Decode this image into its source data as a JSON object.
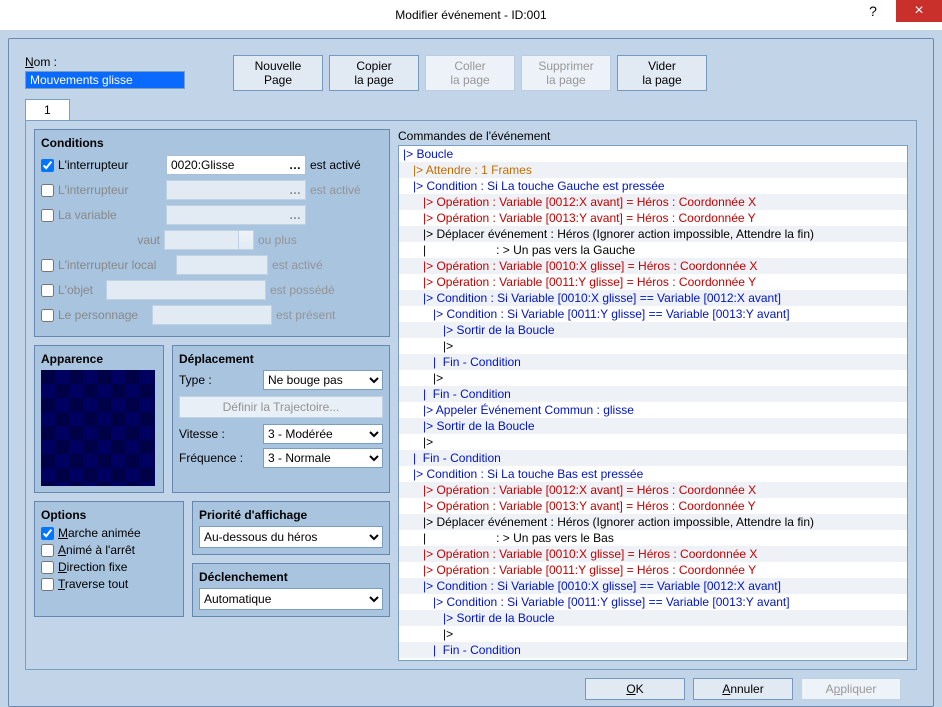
{
  "window": {
    "title": "Modifier événement - ID:001"
  },
  "name": {
    "label": "Nom :",
    "value": "Mouvements glisse"
  },
  "toolbar": {
    "new_page": "Nouvelle\nPage",
    "copy_page": "Copier\nla page",
    "paste_page": "Coller\nla page",
    "delete_page": "Supprimer\nla page",
    "clear_page": "Vider\nla page"
  },
  "tab_label": "1",
  "conditions": {
    "title": "Conditions",
    "sw1": {
      "label": "L'interrupteur",
      "value": "0020:Glisse",
      "trail": "est activé",
      "checked": true
    },
    "sw2": {
      "label": "L'interrupteur",
      "value": "",
      "trail": "est activé",
      "checked": false
    },
    "var": {
      "label": "La variable",
      "value": "",
      "checked": false
    },
    "var_worth": {
      "label": "vaut",
      "trail": "ou plus"
    },
    "swlocal": {
      "label": "L'interrupteur local",
      "trail": "est activé",
      "checked": false
    },
    "objet": {
      "label": "L'objet",
      "trail": "est possédé",
      "checked": false
    },
    "perso": {
      "label": "Le personnage",
      "trail": "est présent",
      "checked": false
    }
  },
  "appearance": {
    "title": "Apparence"
  },
  "deplacement": {
    "title": "Déplacement",
    "type_label": "Type :",
    "type_value": "Ne bouge pas",
    "traj_btn": "Définir la Trajectoire...",
    "vitesse_label": "Vitesse :",
    "vitesse_value": "3 - Modérée",
    "freq_label": "Fréquence :",
    "freq_value": "3 - Normale"
  },
  "options": {
    "title": "Options",
    "marche": "Marche animée",
    "anime": "Animé à l'arrêt",
    "direction": "Direction fixe",
    "traverse": "Traverse tout"
  },
  "priorite": {
    "title": "Priorité d'affichage",
    "value": "Au-dessous du héros"
  },
  "declenchement": {
    "title": "Déclenchement",
    "value": "Automatique"
  },
  "commands_title": "Commandes de l'événement",
  "event_lines": [
    {
      "i": 0,
      "c": "blue",
      "t": "|> Boucle"
    },
    {
      "i": 1,
      "c": "orange",
      "t": "|> Attendre : 1 Frames"
    },
    {
      "i": 1,
      "c": "blue",
      "t": "|> Condition : Si La touche Gauche est pressée"
    },
    {
      "i": 2,
      "c": "red",
      "t": "|> Opération : Variable [0012:X avant] = Héros : Coordonnée X"
    },
    {
      "i": 2,
      "c": "red",
      "t": "|> Opération : Variable [0013:Y avant] = Héros : Coordonnée Y"
    },
    {
      "i": 2,
      "c": "black",
      "t": "|> Déplacer événement : Héros (Ignorer action impossible, Attendre la fin)"
    },
    {
      "i": 2,
      "c": "black",
      "t": "|                     : > Un pas vers la Gauche"
    },
    {
      "i": 2,
      "c": "red",
      "t": "|> Opération : Variable [0010:X glisse] = Héros : Coordonnée X"
    },
    {
      "i": 2,
      "c": "red",
      "t": "|> Opération : Variable [0011:Y glisse] = Héros : Coordonnée Y"
    },
    {
      "i": 2,
      "c": "blue",
      "t": "|> Condition : Si Variable [0010:X glisse] == Variable [0012:X avant]"
    },
    {
      "i": 3,
      "c": "blue",
      "t": "|> Condition : Si Variable [0011:Y glisse] == Variable [0013:Y avant]"
    },
    {
      "i": 4,
      "c": "blue",
      "t": "|> Sortir de la Boucle"
    },
    {
      "i": 4,
      "c": "black",
      "t": "|>"
    },
    {
      "i": 3,
      "c": "blue",
      "t": "|  Fin - Condition"
    },
    {
      "i": 3,
      "c": "black",
      "t": "|>"
    },
    {
      "i": 2,
      "c": "blue",
      "t": "|  Fin - Condition"
    },
    {
      "i": 2,
      "c": "blue",
      "t": "|> Appeler Événement Commun : glisse"
    },
    {
      "i": 2,
      "c": "blue",
      "t": "|> Sortir de la Boucle"
    },
    {
      "i": 2,
      "c": "black",
      "t": "|>"
    },
    {
      "i": 1,
      "c": "blue",
      "t": "|  Fin - Condition"
    },
    {
      "i": 1,
      "c": "blue",
      "t": "|> Condition : Si La touche Bas est pressée"
    },
    {
      "i": 2,
      "c": "red",
      "t": "|> Opération : Variable [0012:X avant] = Héros : Coordonnée X"
    },
    {
      "i": 2,
      "c": "red",
      "t": "|> Opération : Variable [0013:Y avant] = Héros : Coordonnée Y"
    },
    {
      "i": 2,
      "c": "black",
      "t": "|> Déplacer événement : Héros (Ignorer action impossible, Attendre la fin)"
    },
    {
      "i": 2,
      "c": "black",
      "t": "|                     : > Un pas vers le Bas"
    },
    {
      "i": 2,
      "c": "red",
      "t": "|> Opération : Variable [0010:X glisse] = Héros : Coordonnée X"
    },
    {
      "i": 2,
      "c": "red",
      "t": "|> Opération : Variable [0011:Y glisse] = Héros : Coordonnée Y"
    },
    {
      "i": 2,
      "c": "blue",
      "t": "|> Condition : Si Variable [0010:X glisse] == Variable [0012:X avant]"
    },
    {
      "i": 3,
      "c": "blue",
      "t": "|> Condition : Si Variable [0011:Y glisse] == Variable [0013:Y avant]"
    },
    {
      "i": 4,
      "c": "blue",
      "t": "|> Sortir de la Boucle"
    },
    {
      "i": 4,
      "c": "black",
      "t": "|>"
    },
    {
      "i": 3,
      "c": "blue",
      "t": "|  Fin - Condition"
    },
    {
      "i": 3,
      "c": "black",
      "t": "|>"
    }
  ],
  "footer": {
    "ok": "OK",
    "cancel": "Annuler",
    "apply": "Appliquer"
  }
}
